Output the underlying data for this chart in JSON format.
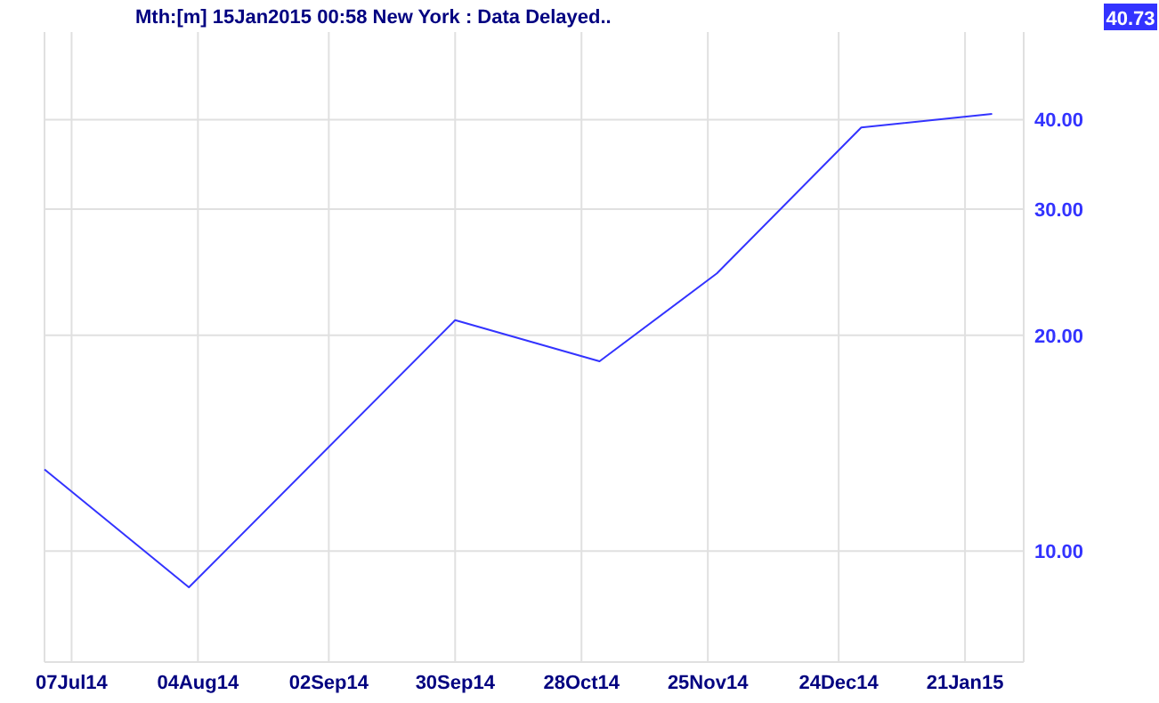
{
  "chart_data": {
    "type": "line",
    "title": "Mth:[m]  15Jan2015 00:58 New York : Data Delayed..",
    "x": [
      "2014-07-01",
      "2014-08-02",
      "2014-09-30",
      "2014-11-01",
      "2014-11-27",
      "2014-12-29",
      "2015-01-27"
    ],
    "series": [
      {
        "color": "#3333ff",
        "values": [
          13.0,
          8.9,
          21.0,
          18.4,
          24.4,
          39.0,
          40.73
        ]
      }
    ],
    "xlim": [
      "2014-07-01",
      "2015-02-03"
    ],
    "xticks": [
      {
        "value": "2014-07-07",
        "label": "07Jul14"
      },
      {
        "value": "2014-08-04",
        "label": "04Aug14"
      },
      {
        "value": "2014-09-02",
        "label": "02Sep14"
      },
      {
        "value": "2014-09-30",
        "label": "30Sep14"
      },
      {
        "value": "2014-10-28",
        "label": "28Oct14"
      },
      {
        "value": "2014-11-25",
        "label": "25Nov14"
      },
      {
        "value": "2014-12-24",
        "label": "24Dec14"
      },
      {
        "value": "2015-01-21",
        "label": "21Jan15"
      }
    ],
    "ylim": [
      7,
      53
    ],
    "yticks": [
      {
        "value": 10,
        "label": "10.00"
      },
      {
        "value": 20,
        "label": "20.00"
      },
      {
        "value": 30,
        "label": "30.00"
      },
      {
        "value": 40,
        "label": "40.00"
      }
    ],
    "log": "y",
    "grid": true,
    "marker": "none",
    "line_style": "solid",
    "annotations": [
      "40.73"
    ]
  }
}
